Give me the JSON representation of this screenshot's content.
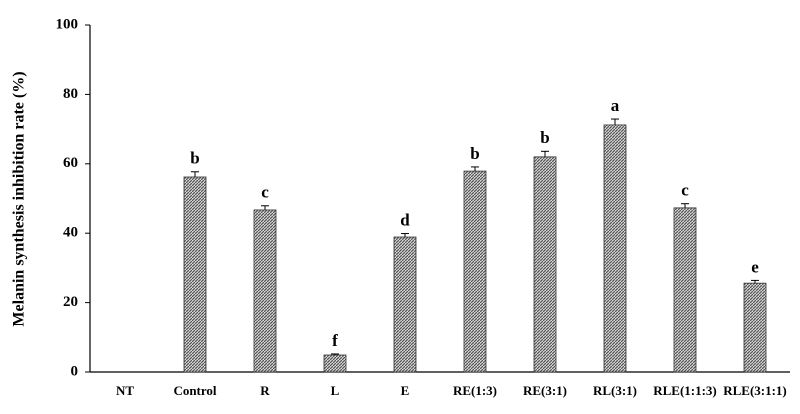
{
  "chart_data": {
    "type": "bar",
    "y_label": "Melanin synthesis inhibition rate (%)",
    "categories": [
      "NT",
      "Control",
      "R",
      "L",
      "E",
      "RE(1:3)",
      "RE(3:1)",
      "RL(3:1)",
      "RLE(1:1:3)",
      "RLE(3:1:1)"
    ],
    "values": [
      null,
      56.2,
      46.7,
      4.9,
      38.9,
      57.9,
      62.0,
      71.2,
      47.3,
      25.6
    ],
    "errors": [
      null,
      1.5,
      1.2,
      0.3,
      1.0,
      1.2,
      1.6,
      1.7,
      1.2,
      0.8
    ],
    "letters": [
      null,
      "b",
      "c",
      "f",
      "d",
      "b",
      "b",
      "a",
      "c",
      "e"
    ],
    "color": "#555555",
    "ylim": [
      0,
      100
    ],
    "yticks": [
      0,
      20,
      40,
      60,
      80,
      100
    ],
    "grid": false
  }
}
